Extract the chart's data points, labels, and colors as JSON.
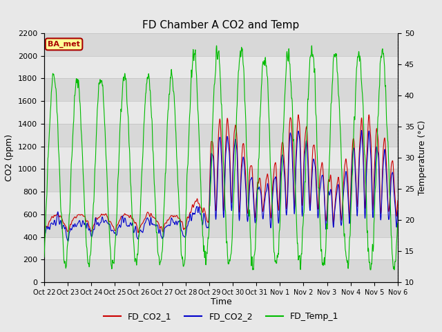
{
  "title": "FD Chamber A CO2 and Temp",
  "xlabel": "Time",
  "ylabel_left": "CO2 (ppm)",
  "ylabel_right": "Temperature (°C)",
  "ylim_left": [
    0,
    2200
  ],
  "ylim_right": [
    10,
    50
  ],
  "legend_labels": [
    "FD_CO2_1",
    "FD_CO2_2",
    "FD_Temp_1"
  ],
  "legend_colors": [
    "#cc0000",
    "#0000cc",
    "#00bb00"
  ],
  "annotation_text": "BA_met",
  "annotation_color": "#aa0000",
  "annotation_bg": "#ffff99",
  "x_tick_labels": [
    "Oct 22",
    "Oct 23",
    "Oct 24",
    "Oct 25",
    "Oct 26",
    "Oct 27",
    "Oct 28",
    "Oct 29",
    "Oct 30",
    "Oct 31",
    "Nov 1",
    "Nov 2",
    "Nov 3",
    "Nov 4",
    "Nov 5",
    "Nov 6"
  ],
  "background_color": "#e8e8e8",
  "band_colors": [
    "#d8d8d8",
    "#e8e8e8"
  ],
  "grid_color": "#cccccc"
}
